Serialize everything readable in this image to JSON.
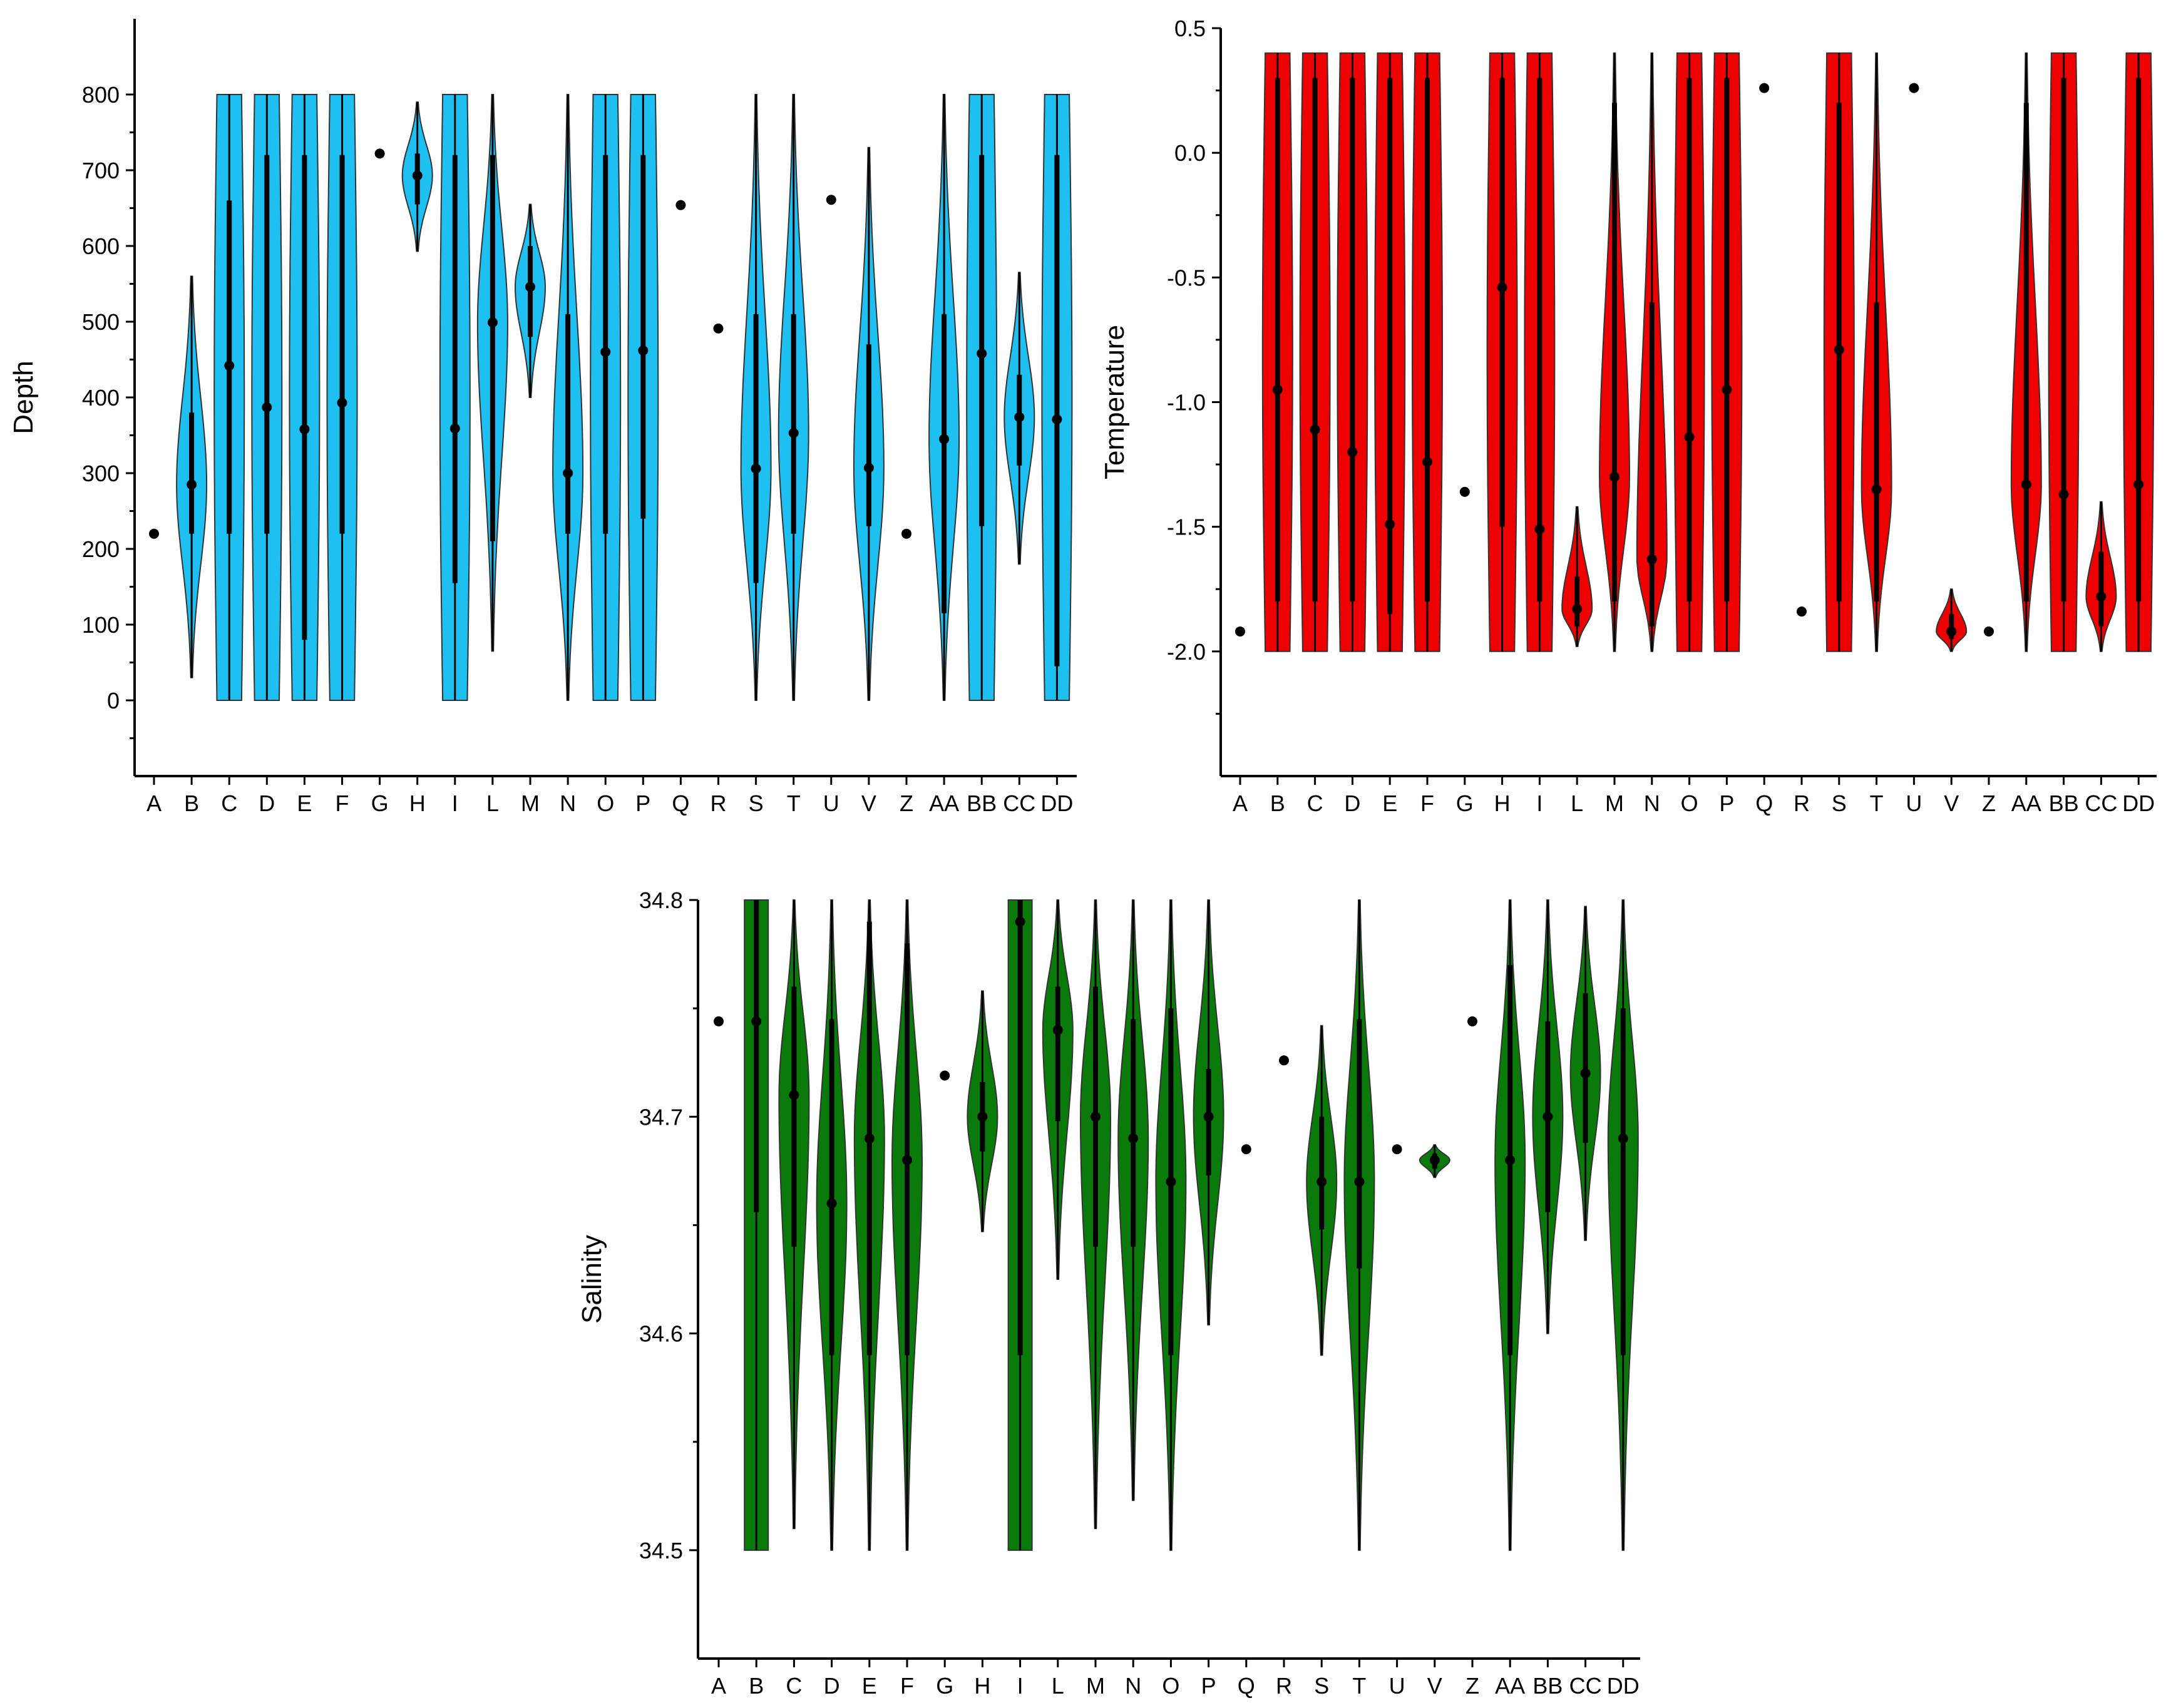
{
  "figure": {
    "panels": 3
  },
  "chart_data": [
    {
      "type": "violin",
      "ylabel": "Depth",
      "xlabel": "",
      "ylim": [
        -100,
        900
      ],
      "ticks": [
        0,
        100,
        200,
        300,
        400,
        500,
        600,
        700,
        800
      ],
      "tick_labels": [
        "0",
        "100",
        "200",
        "300",
        "400",
        "500",
        "600",
        "700",
        "800"
      ],
      "color": "#1ec0f2",
      "categories": [
        "A",
        "B",
        "C",
        "D",
        "E",
        "F",
        "G",
        "H",
        "I",
        "L",
        "M",
        "N",
        "O",
        "P",
        "Q",
        "R",
        "S",
        "T",
        "U",
        "V",
        "Z",
        "AA",
        "BB",
        "CC",
        "DD"
      ],
      "series": [
        {
          "cat": "A",
          "median": 220,
          "single": true
        },
        {
          "cat": "B",
          "min": 30,
          "max": 560,
          "q1": 220,
          "q3": 380,
          "median": 285,
          "shape": "bell"
        },
        {
          "cat": "C",
          "min": 0,
          "max": 800,
          "q1": 220,
          "q3": 660,
          "median": 442,
          "shape": "flat"
        },
        {
          "cat": "D",
          "min": 0,
          "max": 800,
          "q1": 220,
          "q3": 720,
          "median": 387,
          "shape": "flat"
        },
        {
          "cat": "E",
          "min": 0,
          "max": 800,
          "q1": 80,
          "q3": 720,
          "median": 358,
          "shape": "flat"
        },
        {
          "cat": "F",
          "min": 0,
          "max": 800,
          "q1": 220,
          "q3": 720,
          "median": 393,
          "shape": "flat"
        },
        {
          "cat": "G",
          "median": 722,
          "single": true
        },
        {
          "cat": "H",
          "min": 593,
          "max": 790,
          "q1": 655,
          "q3": 722,
          "median": 693,
          "shape": "bell"
        },
        {
          "cat": "I",
          "min": 0,
          "max": 800,
          "q1": 155,
          "q3": 720,
          "median": 359,
          "shape": "flat"
        },
        {
          "cat": "L",
          "min": 65,
          "max": 800,
          "q1": 210,
          "q3": 720,
          "median": 499,
          "shape": "bell"
        },
        {
          "cat": "M",
          "min": 400,
          "max": 655,
          "q1": 480,
          "q3": 600,
          "median": 546,
          "shape": "bell"
        },
        {
          "cat": "N",
          "min": 0,
          "max": 800,
          "q1": 220,
          "q3": 510,
          "median": 300,
          "shape": "bell"
        },
        {
          "cat": "O",
          "min": 0,
          "max": 800,
          "q1": 220,
          "q3": 720,
          "median": 460,
          "shape": "flat"
        },
        {
          "cat": "P",
          "min": 0,
          "max": 800,
          "q1": 240,
          "q3": 720,
          "median": 462,
          "shape": "flat"
        },
        {
          "cat": "Q",
          "median": 654,
          "single": true
        },
        {
          "cat": "R",
          "median": 491,
          "single": true
        },
        {
          "cat": "S",
          "min": 0,
          "max": 800,
          "q1": 155,
          "q3": 510,
          "median": 306,
          "shape": "bell"
        },
        {
          "cat": "T",
          "min": 0,
          "max": 800,
          "q1": 220,
          "q3": 510,
          "median": 353,
          "shape": "bell"
        },
        {
          "cat": "U",
          "median": 661,
          "single": true
        },
        {
          "cat": "V",
          "min": 0,
          "max": 730,
          "q1": 230,
          "q3": 470,
          "median": 307,
          "shape": "bell"
        },
        {
          "cat": "Z",
          "median": 220,
          "single": true
        },
        {
          "cat": "AA",
          "min": 0,
          "max": 800,
          "q1": 115,
          "q3": 510,
          "median": 345,
          "shape": "bell"
        },
        {
          "cat": "BB",
          "min": 0,
          "max": 800,
          "q1": 230,
          "q3": 720,
          "median": 458,
          "shape": "flat"
        },
        {
          "cat": "CC",
          "min": 180,
          "max": 565,
          "q1": 310,
          "q3": 430,
          "median": 374,
          "shape": "bell"
        },
        {
          "cat": "DD",
          "min": 0,
          "max": 800,
          "q1": 45,
          "q3": 720,
          "median": 371,
          "shape": "flat"
        }
      ]
    },
    {
      "type": "violin",
      "ylabel": "Temperature",
      "xlabel": "",
      "ylim": [
        -2.5,
        0.5
      ],
      "ticks": [
        -2.0,
        -1.5,
        -1.0,
        -0.5,
        0.0,
        0.5
      ],
      "tick_labels": [
        "-2.0",
        "-1.5",
        "-1.0",
        "-0.5",
        "0.0",
        "0.5"
      ],
      "color": "#ee0000",
      "categories": [
        "A",
        "B",
        "C",
        "D",
        "E",
        "F",
        "G",
        "H",
        "I",
        "L",
        "M",
        "N",
        "O",
        "P",
        "Q",
        "R",
        "S",
        "T",
        "U",
        "V",
        "Z",
        "AA",
        "BB",
        "CC",
        "DD"
      ],
      "series": [
        {
          "cat": "A",
          "median": -1.92,
          "single": true
        },
        {
          "cat": "B",
          "min": -2.0,
          "max": 0.4,
          "q1": -1.8,
          "q3": 0.3,
          "median": -0.95,
          "shape": "flat"
        },
        {
          "cat": "C",
          "min": -2.0,
          "max": 0.4,
          "q1": -1.8,
          "q3": 0.3,
          "median": -1.11,
          "shape": "flat"
        },
        {
          "cat": "D",
          "min": -2.0,
          "max": 0.4,
          "q1": -1.8,
          "q3": 0.3,
          "median": -1.2,
          "shape": "flat"
        },
        {
          "cat": "E",
          "min": -2.0,
          "max": 0.4,
          "q1": -1.85,
          "q3": 0.3,
          "median": -1.49,
          "shape": "flat"
        },
        {
          "cat": "F",
          "min": -2.0,
          "max": 0.4,
          "q1": -1.8,
          "q3": 0.3,
          "median": -1.24,
          "shape": "flat"
        },
        {
          "cat": "G",
          "median": -1.36,
          "single": true
        },
        {
          "cat": "H",
          "min": -2.0,
          "max": 0.4,
          "q1": -1.5,
          "q3": 0.3,
          "median": -0.54,
          "shape": "flat"
        },
        {
          "cat": "I",
          "min": -2.0,
          "max": 0.4,
          "q1": -1.8,
          "q3": 0.3,
          "median": -1.51,
          "shape": "flat"
        },
        {
          "cat": "L",
          "min": -1.98,
          "max": -1.42,
          "q1": -1.9,
          "q3": -1.7,
          "median": -1.83,
          "shape": "bell"
        },
        {
          "cat": "M",
          "min": -2.0,
          "max": 0.4,
          "q1": -1.8,
          "q3": 0.2,
          "median": -1.3,
          "shape": "bell"
        },
        {
          "cat": "N",
          "min": -2.0,
          "max": 0.4,
          "q1": -1.9,
          "q3": -0.6,
          "median": -1.63,
          "shape": "bell"
        },
        {
          "cat": "O",
          "min": -2.0,
          "max": 0.4,
          "q1": -1.8,
          "q3": 0.3,
          "median": -1.14,
          "shape": "flat"
        },
        {
          "cat": "P",
          "min": -2.0,
          "max": 0.4,
          "q1": -1.8,
          "q3": 0.3,
          "median": -0.95,
          "shape": "flat"
        },
        {
          "cat": "Q",
          "median": 0.26,
          "single": true
        },
        {
          "cat": "R",
          "median": -1.84,
          "single": true
        },
        {
          "cat": "S",
          "min": -2.0,
          "max": 0.4,
          "q1": -1.8,
          "q3": 0.2,
          "median": -0.79,
          "shape": "flat"
        },
        {
          "cat": "T",
          "min": -2.0,
          "max": 0.4,
          "q1": -1.8,
          "q3": -0.6,
          "median": -1.35,
          "shape": "bell"
        },
        {
          "cat": "U",
          "median": 0.26,
          "single": true
        },
        {
          "cat": "V",
          "min": -2.0,
          "max": -1.75,
          "q1": -1.95,
          "q3": -1.85,
          "median": -1.92,
          "shape": "bell"
        },
        {
          "cat": "Z",
          "median": -1.92,
          "single": true
        },
        {
          "cat": "AA",
          "min": -2.0,
          "max": 0.4,
          "q1": -1.8,
          "q3": 0.2,
          "median": -1.33,
          "shape": "bell"
        },
        {
          "cat": "BB",
          "min": -2.0,
          "max": 0.4,
          "q1": -1.8,
          "q3": 0.3,
          "median": -1.37,
          "shape": "flat"
        },
        {
          "cat": "CC",
          "min": -2.0,
          "max": -1.4,
          "q1": -1.9,
          "q3": -1.6,
          "median": -1.78,
          "shape": "bell"
        },
        {
          "cat": "DD",
          "min": -2.0,
          "max": 0.4,
          "q1": -1.8,
          "q3": 0.3,
          "median": -1.33,
          "shape": "flat"
        }
      ]
    },
    {
      "type": "violin",
      "ylabel": "Salinity",
      "xlabel": "",
      "ylim": [
        34.45,
        34.8
      ],
      "ticks": [
        34.5,
        34.6,
        34.7,
        34.8
      ],
      "tick_labels": [
        "34.5",
        "34.6",
        "34.7",
        "34.8"
      ],
      "color": "#0a7a0a",
      "categories": [
        "A",
        "B",
        "C",
        "D",
        "E",
        "F",
        "G",
        "H",
        "I",
        "L",
        "M",
        "N",
        "O",
        "P",
        "Q",
        "R",
        "S",
        "T",
        "U",
        "V",
        "Z",
        "AA",
        "BB",
        "CC",
        "DD"
      ],
      "series": [
        {
          "cat": "A",
          "median": 34.744,
          "single": true
        },
        {
          "cat": "B",
          "min": 34.5,
          "max": 34.8,
          "q1": 34.656,
          "q3": 34.8,
          "median": 34.744,
          "shape": "rect"
        },
        {
          "cat": "C",
          "min": 34.51,
          "max": 34.8,
          "q1": 34.64,
          "q3": 34.76,
          "median": 34.71,
          "shape": "bell"
        },
        {
          "cat": "D",
          "min": 34.5,
          "max": 34.8,
          "q1": 34.59,
          "q3": 34.745,
          "median": 34.66,
          "shape": "bell"
        },
        {
          "cat": "E",
          "min": 34.5,
          "max": 34.8,
          "q1": 34.59,
          "q3": 34.79,
          "median": 34.69,
          "shape": "bell"
        },
        {
          "cat": "F",
          "min": 34.5,
          "max": 34.8,
          "q1": 34.59,
          "q3": 34.78,
          "median": 34.68,
          "shape": "bell"
        },
        {
          "cat": "G",
          "median": 34.719,
          "single": true
        },
        {
          "cat": "H",
          "min": 34.647,
          "max": 34.758,
          "q1": 34.684,
          "q3": 34.716,
          "median": 34.7,
          "shape": "bell"
        },
        {
          "cat": "I",
          "min": 34.5,
          "max": 34.8,
          "q1": 34.59,
          "q3": 34.8,
          "median": 34.79,
          "shape": "rect"
        },
        {
          "cat": "L",
          "min": 34.625,
          "max": 34.8,
          "q1": 34.698,
          "q3": 34.76,
          "median": 34.74,
          "shape": "bell"
        },
        {
          "cat": "M",
          "min": 34.51,
          "max": 34.8,
          "q1": 34.64,
          "q3": 34.76,
          "median": 34.7,
          "shape": "bell"
        },
        {
          "cat": "N",
          "min": 34.523,
          "max": 34.8,
          "q1": 34.64,
          "q3": 34.745,
          "median": 34.69,
          "shape": "bell"
        },
        {
          "cat": "O",
          "min": 34.5,
          "max": 34.8,
          "q1": 34.59,
          "q3": 34.75,
          "median": 34.67,
          "shape": "bell"
        },
        {
          "cat": "P",
          "min": 34.604,
          "max": 34.8,
          "q1": 34.673,
          "q3": 34.722,
          "median": 34.7,
          "shape": "bell"
        },
        {
          "cat": "Q",
          "median": 34.685,
          "single": true
        },
        {
          "cat": "R",
          "median": 34.726,
          "single": true
        },
        {
          "cat": "S",
          "min": 34.59,
          "max": 34.742,
          "q1": 34.648,
          "q3": 34.7,
          "median": 34.67,
          "shape": "bell"
        },
        {
          "cat": "T",
          "min": 34.5,
          "max": 34.8,
          "q1": 34.63,
          "q3": 34.745,
          "median": 34.67,
          "shape": "bell"
        },
        {
          "cat": "U",
          "median": 34.685,
          "single": true
        },
        {
          "cat": "V",
          "min": 34.672,
          "max": 34.687,
          "q1": 34.676,
          "q3": 34.683,
          "median": 34.68,
          "shape": "bell"
        },
        {
          "cat": "Z",
          "median": 34.744,
          "single": true
        },
        {
          "cat": "AA",
          "min": 34.5,
          "max": 34.8,
          "q1": 34.59,
          "q3": 34.77,
          "median": 34.68,
          "shape": "bell"
        },
        {
          "cat": "BB",
          "min": 34.6,
          "max": 34.8,
          "q1": 34.656,
          "q3": 34.744,
          "median": 34.7,
          "shape": "bell"
        },
        {
          "cat": "CC",
          "min": 34.643,
          "max": 34.797,
          "q1": 34.688,
          "q3": 34.757,
          "median": 34.72,
          "shape": "bell"
        },
        {
          "cat": "DD",
          "min": 34.5,
          "max": 34.8,
          "q1": 34.59,
          "q3": 34.75,
          "median": 34.69,
          "shape": "bell"
        }
      ]
    }
  ]
}
